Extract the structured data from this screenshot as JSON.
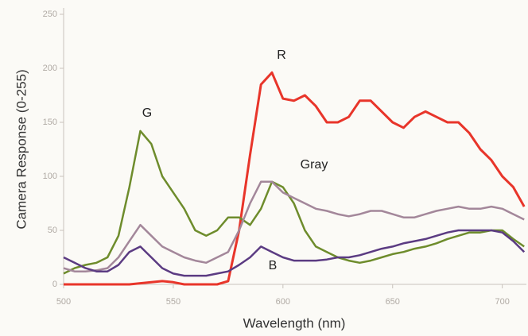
{
  "chart_data": {
    "type": "line",
    "xlabel": "Wavelength (nm)",
    "ylabel": "Camera Response (0-255)",
    "annotations": [
      "R",
      "G",
      "Gray",
      "B"
    ],
    "x": [
      500,
      505,
      510,
      515,
      520,
      525,
      530,
      535,
      540,
      545,
      550,
      555,
      560,
      565,
      570,
      575,
      580,
      585,
      590,
      595,
      600,
      605,
      610,
      615,
      620,
      625,
      630,
      635,
      640,
      645,
      650,
      655,
      660,
      665,
      670,
      675,
      680,
      685,
      690,
      695,
      700,
      705,
      710
    ],
    "xlim": [
      500,
      711
    ],
    "xticks": [
      500,
      550,
      600,
      650,
      700
    ],
    "ylim": [
      0,
      250
    ],
    "yticks": [
      0,
      50,
      100,
      150,
      200,
      250
    ],
    "series": [
      {
        "name": "R",
        "color": "#e8352a",
        "values": [
          0,
          0,
          0,
          0,
          0,
          0,
          0,
          1,
          2,
          3,
          2,
          0,
          0,
          0,
          0,
          3,
          50,
          120,
          185,
          196,
          172,
          170,
          175,
          165,
          150,
          150,
          155,
          170,
          170,
          160,
          150,
          145,
          155,
          160,
          155,
          150,
          150,
          140,
          125,
          115,
          100,
          90,
          72
        ]
      },
      {
        "name": "G",
        "color": "#6e8c2c",
        "values": [
          10,
          15,
          18,
          20,
          25,
          45,
          90,
          142,
          130,
          100,
          85,
          70,
          50,
          45,
          50,
          62,
          62,
          55,
          70,
          95,
          90,
          75,
          50,
          35,
          30,
          25,
          22,
          20,
          22,
          25,
          28,
          30,
          33,
          35,
          38,
          42,
          45,
          48,
          48,
          50,
          50,
          42,
          35
        ]
      },
      {
        "name": "Gray",
        "color": "#a3879a",
        "values": [
          15,
          12,
          12,
          13,
          15,
          25,
          40,
          55,
          45,
          35,
          30,
          25,
          22,
          20,
          25,
          30,
          50,
          75,
          95,
          95,
          85,
          80,
          75,
          70,
          68,
          65,
          63,
          65,
          68,
          68,
          65,
          62,
          62,
          65,
          68,
          70,
          72,
          70,
          70,
          72,
          70,
          65,
          60
        ]
      },
      {
        "name": "B",
        "color": "#5b3b82",
        "values": [
          25,
          20,
          15,
          12,
          12,
          18,
          30,
          35,
          25,
          15,
          10,
          8,
          8,
          8,
          10,
          12,
          18,
          25,
          35,
          30,
          25,
          22,
          22,
          22,
          23,
          25,
          25,
          27,
          30,
          33,
          35,
          38,
          40,
          42,
          45,
          48,
          50,
          50,
          50,
          50,
          48,
          40,
          30
        ]
      }
    ]
  }
}
